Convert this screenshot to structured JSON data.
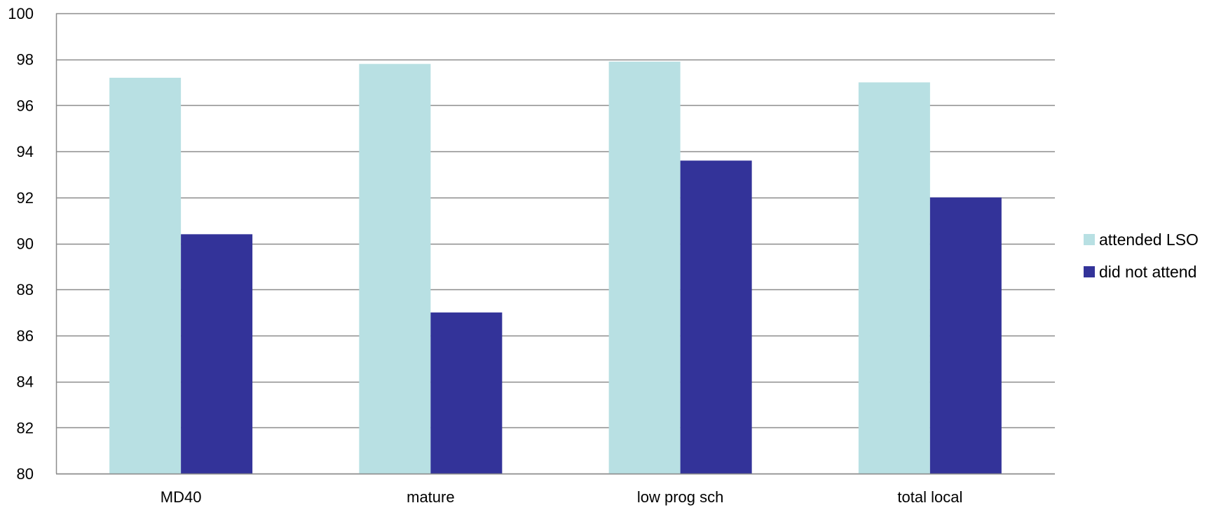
{
  "chart_data": {
    "type": "bar",
    "categories": [
      "MD40",
      "mature",
      "low prog sch",
      "total local"
    ],
    "series": [
      {
        "name": "attended LSO",
        "values": [
          97.2,
          97.8,
          97.9,
          97.0
        ],
        "color": "#b8e0e3"
      },
      {
        "name": "did not attend",
        "values": [
          90.4,
          87.0,
          93.6,
          92.0
        ],
        "color": "#333399"
      }
    ],
    "ylim": [
      80,
      100
    ],
    "yticks": [
      80,
      82,
      84,
      86,
      88,
      90,
      92,
      94,
      96,
      98,
      100
    ],
    "grid": true,
    "gridColor": "#8c8c8c",
    "legend_position": "right",
    "title": "",
    "xlabel": "",
    "ylabel": ""
  }
}
